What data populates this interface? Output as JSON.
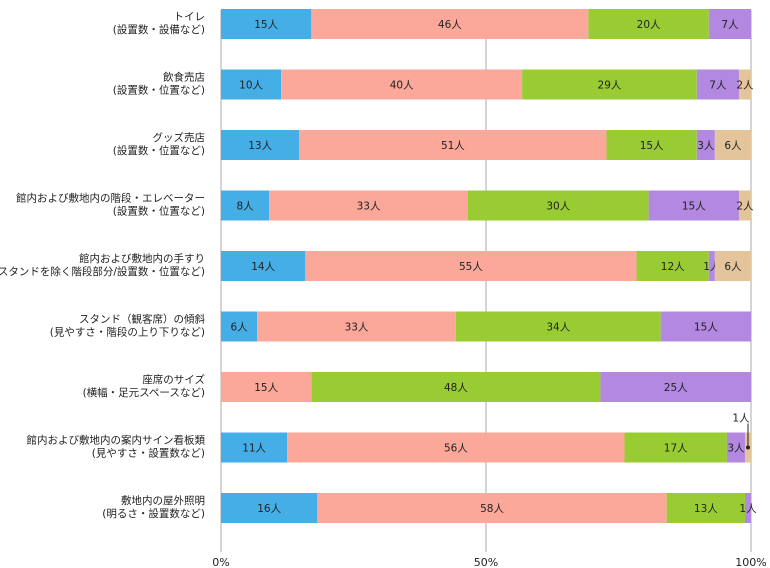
{
  "chart_data": {
    "type": "bar",
    "orientation": "horizontal",
    "stacked": true,
    "normalized": true,
    "categories": [
      [
        "トイレ",
        "(設置数・設備など)"
      ],
      [
        "飲食売店",
        "(設置数・位置など)"
      ],
      [
        "グッズ売店",
        "(設置数・位置など)"
      ],
      [
        "館内および敷地内の階段・エレベーター",
        "(設置数・位置など)"
      ],
      [
        "館内および敷地内の手すり",
        "(スタンドを除く階段部分/設置数・位置など)"
      ],
      [
        "スタンド（観客席）の傾斜",
        "(見やすさ・階段の上り下りなど)"
      ],
      [
        "座席のサイズ",
        "(横幅・足元スペースなど)"
      ],
      [
        "館内および敷地内の案内サイン看板類",
        "(見やすさ・設置数など)"
      ],
      [
        "敷地内の屋外照明",
        "(明るさ・設置数など)"
      ]
    ],
    "unit": "人",
    "series": [
      {
        "color": "#45aee6",
        "values": [
          15,
          10,
          13,
          8,
          14,
          6,
          0,
          11,
          16
        ]
      },
      {
        "color": "#fba89a",
        "values": [
          46,
          40,
          51,
          33,
          55,
          33,
          15,
          56,
          58
        ]
      },
      {
        "color": "#99cc33",
        "values": [
          20,
          29,
          15,
          30,
          12,
          34,
          48,
          17,
          13
        ]
      },
      {
        "color": "#b388e0",
        "values": [
          7,
          7,
          3,
          15,
          1,
          15,
          25,
          3,
          1
        ]
      },
      {
        "color": "#e3c49b",
        "values": [
          0,
          2,
          6,
          2,
          6,
          0,
          0,
          1,
          0
        ]
      }
    ],
    "x_ticks": [
      "0%",
      "50%",
      "100%"
    ],
    "xlim": [
      0,
      100
    ],
    "grid": "vertical at 50% and 100%",
    "legend": "none",
    "callout": {
      "category_index": 7,
      "series_index": 4,
      "text": "1人"
    }
  }
}
